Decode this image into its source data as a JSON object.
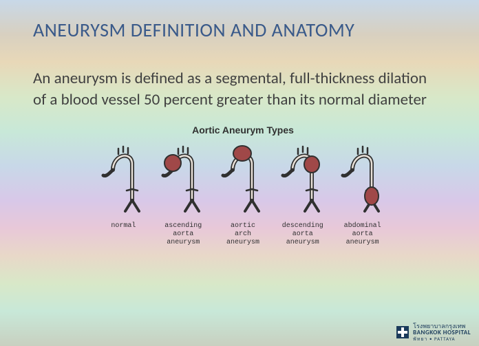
{
  "title": "ANEURYSM DEFINITION AND ANATOMY",
  "body": "An aneurysm is defined as a segmental, full-thickness dilation of a blood vessel 50 percent greater than its normal diameter",
  "diagram": {
    "title": "Aortic Aneurym Types",
    "stroke_color": "#303030",
    "fill_color": "#a04848",
    "types": [
      {
        "label": "normal",
        "bulge": "none"
      },
      {
        "label": "ascending\naorta\naneurysm",
        "bulge": "ascending"
      },
      {
        "label": "aortic\narch\naneurysm",
        "bulge": "arch"
      },
      {
        "label": "descending\naorta\naneurysm",
        "bulge": "descending"
      },
      {
        "label": "abdominal\naorta\naneurysm",
        "bulge": "abdominal"
      }
    ]
  },
  "footer": {
    "thai": "โรงพยาบาลกรุงเทพ",
    "eng": "BANGKOK HOSPITAL",
    "sub": "พัทยา • PATTAYA"
  },
  "colors": {
    "title": "#3a5a8a",
    "body": "#404040",
    "label": "#303030",
    "logo": "#1a3a5a"
  }
}
